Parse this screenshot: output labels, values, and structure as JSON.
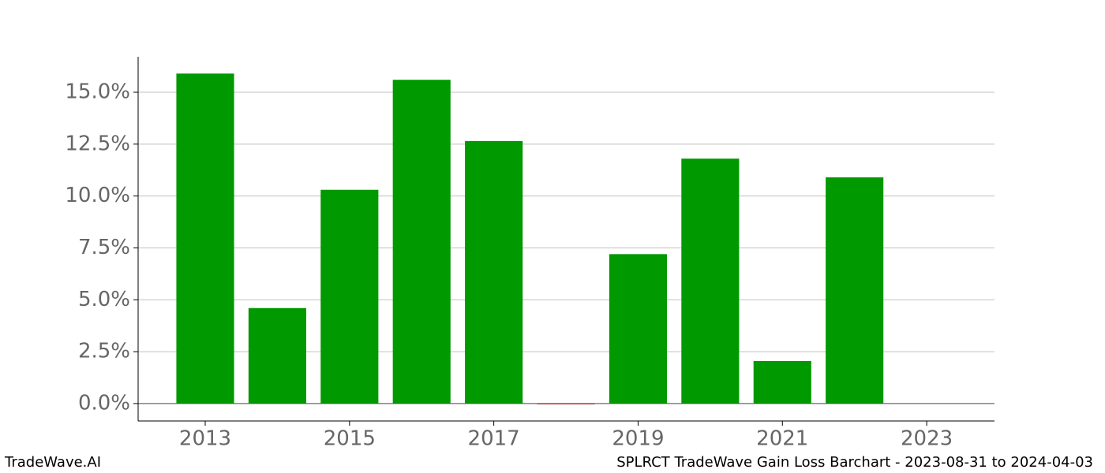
{
  "chart_data": {
    "type": "bar",
    "x": [
      2013,
      2014,
      2015,
      2016,
      2017,
      2018,
      2019,
      2020,
      2021,
      2022
    ],
    "values": [
      15.9,
      4.6,
      10.3,
      15.6,
      12.65,
      -0.02,
      7.2,
      11.8,
      2.05,
      10.9
    ],
    "positive_color": "#009900",
    "negative_color": "#dd2222",
    "xlim": [
      2012.07,
      2023.94
    ],
    "xticks": [
      2013,
      2015,
      2017,
      2019,
      2021,
      2023
    ],
    "ylim": [
      -0.84,
      16.71
    ],
    "yticks": [
      {
        "value": 0,
        "label": "0.0%"
      },
      {
        "value": 2.5,
        "label": "2.5%"
      },
      {
        "value": 5,
        "label": "5.0%"
      },
      {
        "value": 7.5,
        "label": "7.5%"
      },
      {
        "value": 10,
        "label": "10.0%"
      },
      {
        "value": 12.5,
        "label": "12.5%"
      },
      {
        "value": 15,
        "label": "15.0%"
      }
    ],
    "grid": true,
    "footer_left": "TradeWave.AI",
    "footer_right": "SPLRCT TradeWave Gain Loss Barchart - 2023-08-31 to 2024-04-03"
  }
}
